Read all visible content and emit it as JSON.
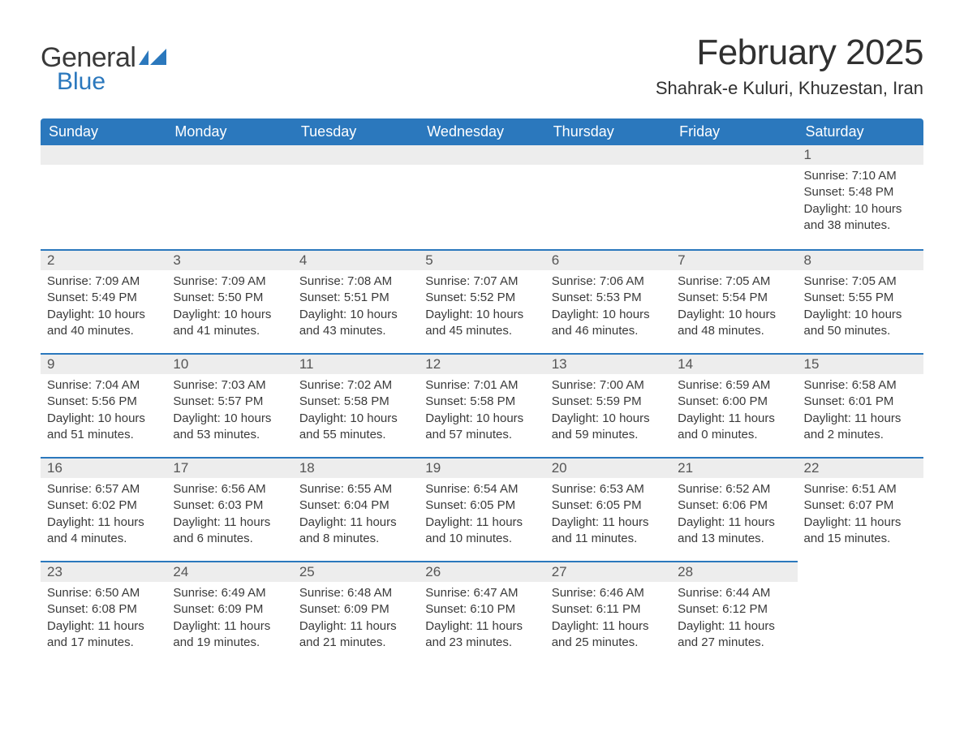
{
  "logo": {
    "text1": "General",
    "text2": "Blue"
  },
  "title": "February 2025",
  "location": "Shahrak-e Kuluri, Khuzestan, Iran",
  "colors": {
    "header_bg": "#2b78bd",
    "header_text": "#ffffff",
    "daynum_bg": "#ededed",
    "daynum_border": "#2b78bd",
    "body_text": "#3a3a3a",
    "page_bg": "#ffffff"
  },
  "weekdays": [
    "Sunday",
    "Monday",
    "Tuesday",
    "Wednesday",
    "Thursday",
    "Friday",
    "Saturday"
  ],
  "weeks": [
    [
      null,
      null,
      null,
      null,
      null,
      null,
      {
        "d": "1",
        "sunrise": "7:10 AM",
        "sunset": "5:48 PM",
        "daylight": "10 hours and 38 minutes."
      }
    ],
    [
      {
        "d": "2",
        "sunrise": "7:09 AM",
        "sunset": "5:49 PM",
        "daylight": "10 hours and 40 minutes."
      },
      {
        "d": "3",
        "sunrise": "7:09 AM",
        "sunset": "5:50 PM",
        "daylight": "10 hours and 41 minutes."
      },
      {
        "d": "4",
        "sunrise": "7:08 AM",
        "sunset": "5:51 PM",
        "daylight": "10 hours and 43 minutes."
      },
      {
        "d": "5",
        "sunrise": "7:07 AM",
        "sunset": "5:52 PM",
        "daylight": "10 hours and 45 minutes."
      },
      {
        "d": "6",
        "sunrise": "7:06 AM",
        "sunset": "5:53 PM",
        "daylight": "10 hours and 46 minutes."
      },
      {
        "d": "7",
        "sunrise": "7:05 AM",
        "sunset": "5:54 PM",
        "daylight": "10 hours and 48 minutes."
      },
      {
        "d": "8",
        "sunrise": "7:05 AM",
        "sunset": "5:55 PM",
        "daylight": "10 hours and 50 minutes."
      }
    ],
    [
      {
        "d": "9",
        "sunrise": "7:04 AM",
        "sunset": "5:56 PM",
        "daylight": "10 hours and 51 minutes."
      },
      {
        "d": "10",
        "sunrise": "7:03 AM",
        "sunset": "5:57 PM",
        "daylight": "10 hours and 53 minutes."
      },
      {
        "d": "11",
        "sunrise": "7:02 AM",
        "sunset": "5:58 PM",
        "daylight": "10 hours and 55 minutes."
      },
      {
        "d": "12",
        "sunrise": "7:01 AM",
        "sunset": "5:58 PM",
        "daylight": "10 hours and 57 minutes."
      },
      {
        "d": "13",
        "sunrise": "7:00 AM",
        "sunset": "5:59 PM",
        "daylight": "10 hours and 59 minutes."
      },
      {
        "d": "14",
        "sunrise": "6:59 AM",
        "sunset": "6:00 PM",
        "daylight": "11 hours and 0 minutes."
      },
      {
        "d": "15",
        "sunrise": "6:58 AM",
        "sunset": "6:01 PM",
        "daylight": "11 hours and 2 minutes."
      }
    ],
    [
      {
        "d": "16",
        "sunrise": "6:57 AM",
        "sunset": "6:02 PM",
        "daylight": "11 hours and 4 minutes."
      },
      {
        "d": "17",
        "sunrise": "6:56 AM",
        "sunset": "6:03 PM",
        "daylight": "11 hours and 6 minutes."
      },
      {
        "d": "18",
        "sunrise": "6:55 AM",
        "sunset": "6:04 PM",
        "daylight": "11 hours and 8 minutes."
      },
      {
        "d": "19",
        "sunrise": "6:54 AM",
        "sunset": "6:05 PM",
        "daylight": "11 hours and 10 minutes."
      },
      {
        "d": "20",
        "sunrise": "6:53 AM",
        "sunset": "6:05 PM",
        "daylight": "11 hours and 11 minutes."
      },
      {
        "d": "21",
        "sunrise": "6:52 AM",
        "sunset": "6:06 PM",
        "daylight": "11 hours and 13 minutes."
      },
      {
        "d": "22",
        "sunrise": "6:51 AM",
        "sunset": "6:07 PM",
        "daylight": "11 hours and 15 minutes."
      }
    ],
    [
      {
        "d": "23",
        "sunrise": "6:50 AM",
        "sunset": "6:08 PM",
        "daylight": "11 hours and 17 minutes."
      },
      {
        "d": "24",
        "sunrise": "6:49 AM",
        "sunset": "6:09 PM",
        "daylight": "11 hours and 19 minutes."
      },
      {
        "d": "25",
        "sunrise": "6:48 AM",
        "sunset": "6:09 PM",
        "daylight": "11 hours and 21 minutes."
      },
      {
        "d": "26",
        "sunrise": "6:47 AM",
        "sunset": "6:10 PM",
        "daylight": "11 hours and 23 minutes."
      },
      {
        "d": "27",
        "sunrise": "6:46 AM",
        "sunset": "6:11 PM",
        "daylight": "11 hours and 25 minutes."
      },
      {
        "d": "28",
        "sunrise": "6:44 AM",
        "sunset": "6:12 PM",
        "daylight": "11 hours and 27 minutes."
      },
      null
    ]
  ],
  "labels": {
    "sunrise": "Sunrise:",
    "sunset": "Sunset:",
    "daylight": "Daylight:"
  }
}
